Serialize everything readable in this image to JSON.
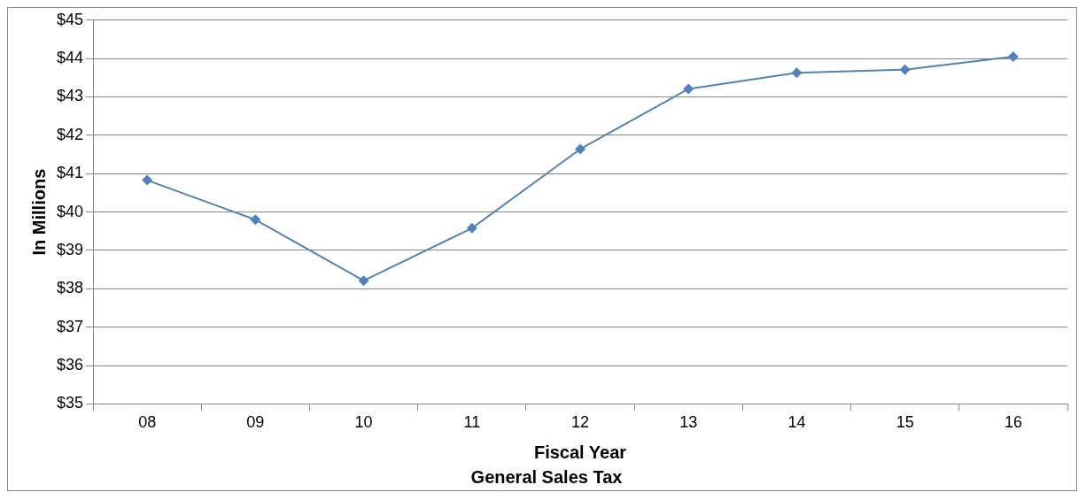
{
  "chart_data": {
    "type": "line",
    "title": "General Sales Tax",
    "xlabel": "Fiscal Year",
    "ylabel": "In Millions",
    "categories": [
      "08",
      "09",
      "10",
      "11",
      "12",
      "13",
      "14",
      "15",
      "16"
    ],
    "series": [
      {
        "color": "#4f81bd",
        "values": [
          40.83,
          39.8,
          38.21,
          39.58,
          41.64,
          43.21,
          43.63,
          43.71,
          44.05
        ]
      }
    ],
    "ylim": [
      35,
      45
    ],
    "yticks": [
      {
        "value": 35,
        "label": "$35"
      },
      {
        "value": 36,
        "label": "$36"
      },
      {
        "value": 37,
        "label": "$37"
      },
      {
        "value": 38,
        "label": "$38"
      },
      {
        "value": 39,
        "label": "$39"
      },
      {
        "value": 40,
        "label": "$40"
      },
      {
        "value": 41,
        "label": "$41"
      },
      {
        "value": 42,
        "label": "$42"
      },
      {
        "value": 43,
        "label": "$43"
      },
      {
        "value": 44,
        "label": "$44"
      },
      {
        "value": 45,
        "label": "$45"
      }
    ],
    "grid": "y",
    "legend": false,
    "marker": "diamond",
    "line_style": "solid"
  }
}
